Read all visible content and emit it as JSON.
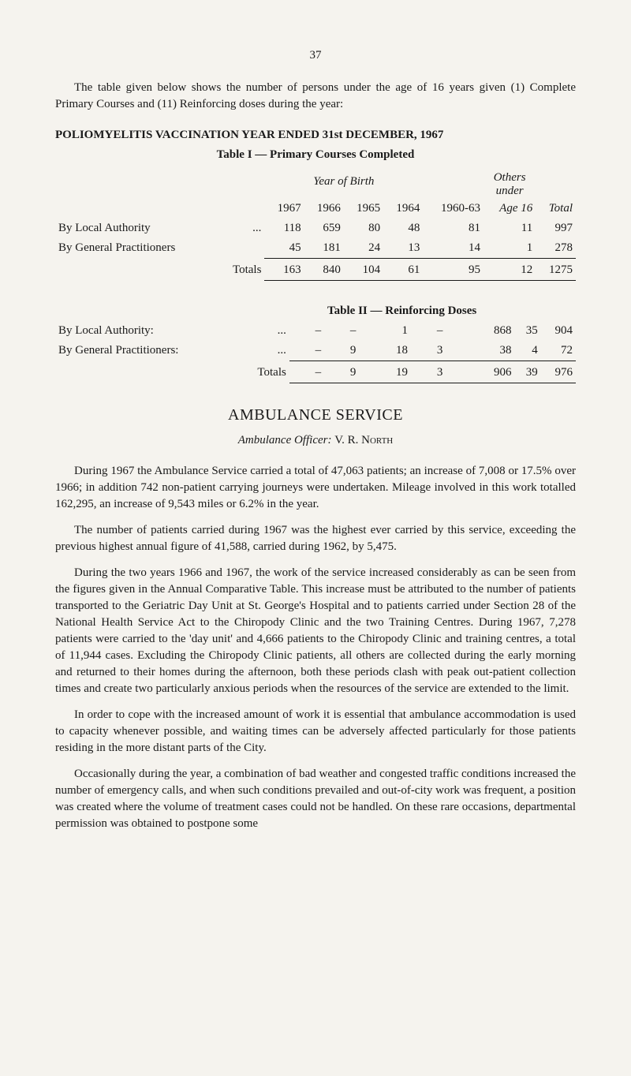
{
  "page_number": "37",
  "intro_paragraph": "The table given below shows the number of persons under the age of 16 years given (1) Complete Primary Courses and (11) Reinforcing doses during the year:",
  "section_title": "POLIOMYELITIS VACCINATION YEAR ENDED 31st DECEMBER, 1967",
  "table1": {
    "caption": "Table I — Primary Courses Completed",
    "year_of_birth_label": "Year of Birth",
    "others_label_line1": "Others",
    "others_label_line2": "under",
    "columns": [
      "1967",
      "1966",
      "1965",
      "1964",
      "1960-63",
      "Age 16",
      "Total"
    ],
    "rows": [
      {
        "label": "By Local Authority",
        "dots": "...",
        "vals": [
          "118",
          "659",
          "80",
          "48",
          "81",
          "11",
          "997"
        ]
      },
      {
        "label": "By General Practitioners",
        "dots": "",
        "vals": [
          "45",
          "181",
          "24",
          "13",
          "14",
          "1",
          "278"
        ]
      }
    ],
    "totals": {
      "label": "Totals",
      "vals": [
        "163",
        "840",
        "104",
        "61",
        "95",
        "12",
        "1275"
      ]
    }
  },
  "table2": {
    "caption": "Table II — Reinforcing Doses",
    "rows": [
      {
        "label": "By Local Authority:",
        "dots": "...",
        "vals": [
          "–",
          "–",
          "1",
          "–",
          "868",
          "35",
          "904"
        ]
      },
      {
        "label": "By General Practitioners:",
        "dots": "...",
        "vals": [
          "–",
          "9",
          "18",
          "3",
          "38",
          "4",
          "72"
        ]
      }
    ],
    "totals": {
      "label": "Totals",
      "vals": [
        "–",
        "9",
        "19",
        "3",
        "906",
        "39",
        "976"
      ]
    }
  },
  "service_heading": "AMBULANCE SERVICE",
  "officer_label": "Ambulance Officer:",
  "officer_name": "V. R. North",
  "paragraphs": [
    "During 1967 the Ambulance Service carried a total of 47,063 patients; an increase of 7,008 or 17.5% over 1966; in addition 742 non-patient carrying journeys were undertaken. Mileage involved in this work totalled 162,295, an increase of 9,543 miles or 6.2% in the year.",
    "The number of patients carried during 1967 was the highest ever carried by this service, exceeding the previous highest annual figure of 41,588, carried during 1962, by 5,475.",
    "During the two years 1966 and 1967, the work of the service increased considerably as can be seen from the figures given in the Annual Comparative Table. This increase must be attributed to the number of patients transported to the Geriatric Day Unit at St. George's Hospital and to patients carried under Section 28 of the National Health Service Act to the Chiropody Clinic and the two Training Centres. During 1967, 7,278 patients were carried to the 'day unit' and 4,666 patients to the Chiropody Clinic and training centres, a total of 11,944 cases. Excluding the Chiropody Clinic patients, all others are collected during the early morning and returned to their homes during the afternoon, both these periods clash with peak out-patient collection times and create two particularly anxious periods when the resources of the service are extended to the limit.",
    "In order to cope with the increased amount of work it is essential that ambulance accommodation is used to capacity whenever possible, and waiting times can be adversely affected particularly for those patients residing in the more distant parts of the City.",
    "Occasionally during the year, a combination of bad weather and congested traffic conditions increased the number of emergency calls, and when such conditions prevailed and out-of-city work was frequent, a position was created where the volume of treatment cases could not be handled. On these rare occasions, departmental permission was obtained to postpone some"
  ]
}
